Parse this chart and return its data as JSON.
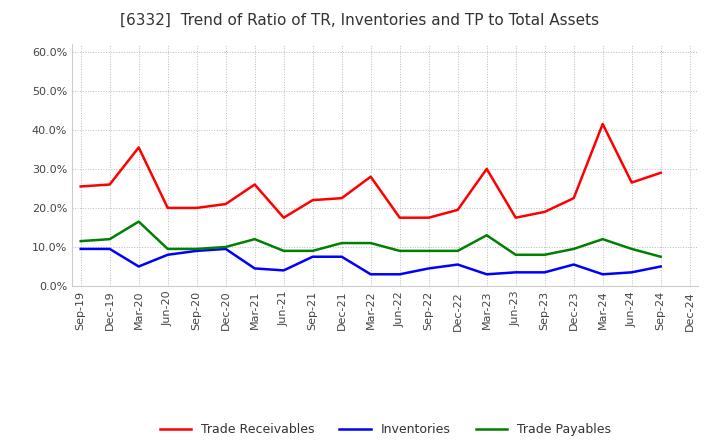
{
  "title": "[6332]  Trend of Ratio of TR, Inventories and TP to Total Assets",
  "labels": [
    "Sep-19",
    "Dec-19",
    "Mar-20",
    "Jun-20",
    "Sep-20",
    "Dec-20",
    "Mar-21",
    "Jun-21",
    "Sep-21",
    "Dec-21",
    "Mar-22",
    "Jun-22",
    "Sep-22",
    "Dec-22",
    "Mar-23",
    "Jun-23",
    "Sep-23",
    "Dec-23",
    "Mar-24",
    "Jun-24",
    "Sep-24",
    "Dec-24"
  ],
  "trade_receivables": [
    0.255,
    0.26,
    0.355,
    0.2,
    0.2,
    0.21,
    0.26,
    0.175,
    0.22,
    0.225,
    0.28,
    0.175,
    0.175,
    0.195,
    0.3,
    0.175,
    0.19,
    0.225,
    0.415,
    0.265,
    0.29,
    null
  ],
  "inventories": [
    0.095,
    0.095,
    0.05,
    0.08,
    0.09,
    0.095,
    0.045,
    0.04,
    0.075,
    0.075,
    0.03,
    0.03,
    0.045,
    0.055,
    0.03,
    0.035,
    0.035,
    0.055,
    0.03,
    0.035,
    0.05,
    null
  ],
  "trade_payables": [
    0.115,
    0.12,
    0.165,
    0.095,
    0.095,
    0.1,
    0.12,
    0.09,
    0.09,
    0.11,
    0.11,
    0.09,
    0.09,
    0.09,
    0.13,
    0.08,
    0.08,
    0.095,
    0.12,
    0.095,
    0.075,
    null
  ],
  "tr_color": "#ff0000",
  "inv_color": "#0000ff",
  "tp_color": "#008000",
  "ylim": [
    0.0,
    0.62
  ],
  "yticks": [
    0.0,
    0.1,
    0.2,
    0.3,
    0.4,
    0.5,
    0.6
  ],
  "background_color": "#ffffff",
  "grid_color": "#bbbbbb",
  "title_fontsize": 11,
  "title_color": "#333333",
  "tick_fontsize": 8,
  "legend_fontsize": 9,
  "linewidth": 1.8
}
